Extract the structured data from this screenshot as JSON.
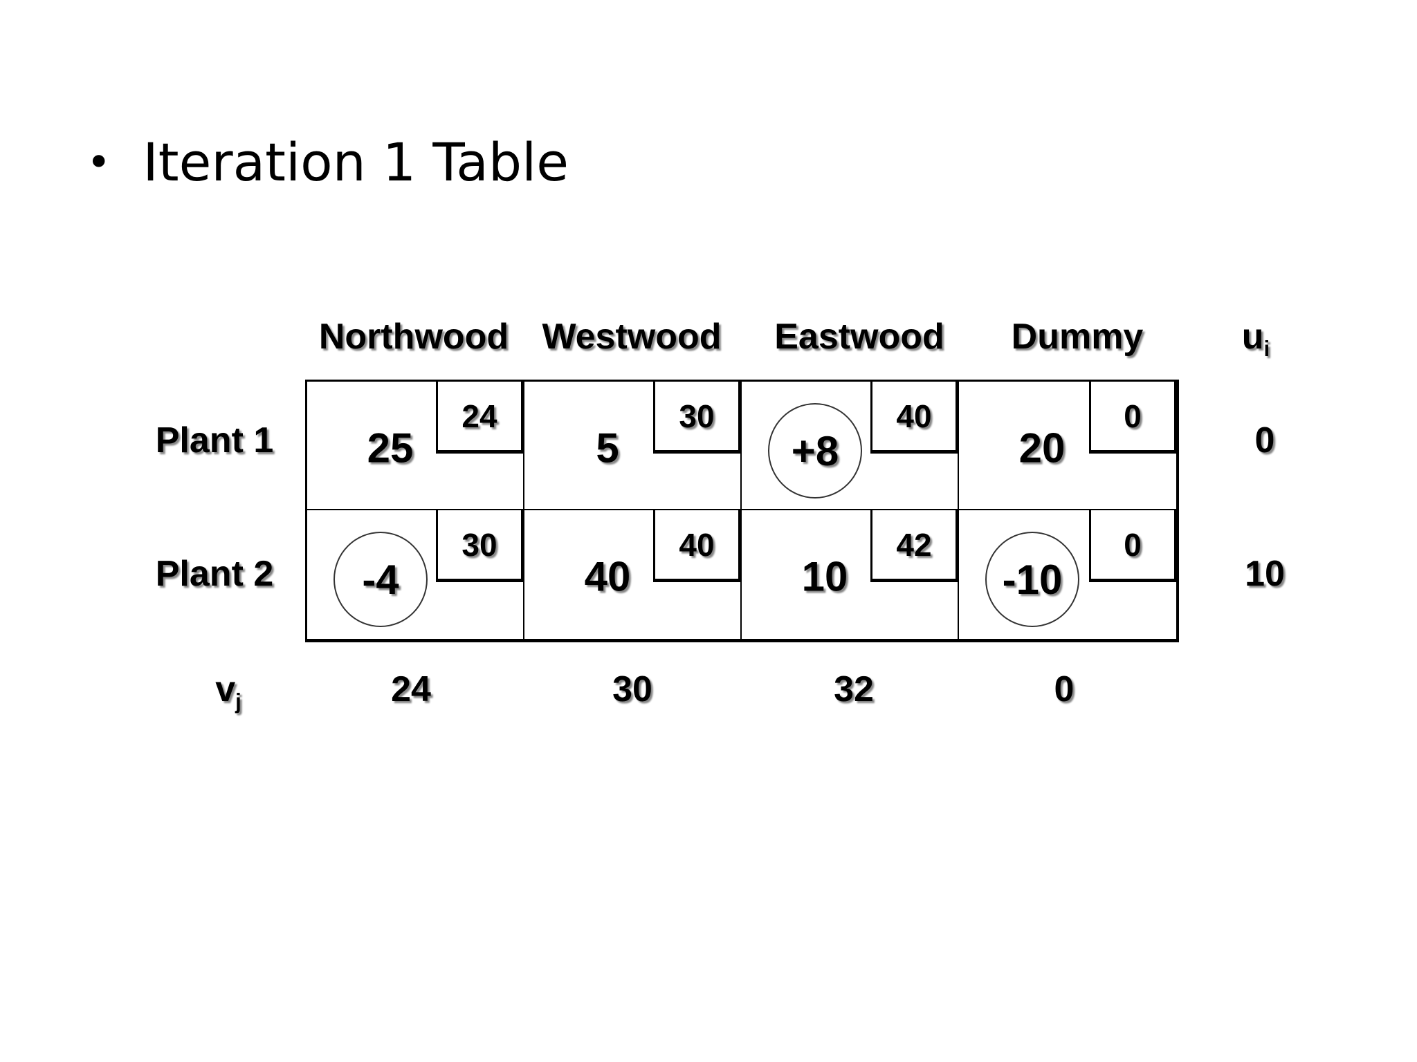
{
  "title": "Iteration 1 Table",
  "columns": [
    "Northwood",
    "Westwood",
    "Eastwood",
    "Dummy"
  ],
  "ui_label": {
    "base": "u",
    "sub": "i"
  },
  "vj_label": {
    "base": "v",
    "sub": "j"
  },
  "rows": [
    {
      "label": "Plant 1",
      "ui": "0",
      "cells": [
        {
          "value": "25",
          "cost": "24",
          "circled": false
        },
        {
          "value": "5",
          "cost": "30",
          "circled": false
        },
        {
          "value": "+8",
          "cost": "40",
          "circled": true
        },
        {
          "value": "20",
          "cost": "0",
          "circled": false
        }
      ]
    },
    {
      "label": "Plant 2",
      "ui": "10",
      "cells": [
        {
          "value": "-4",
          "cost": "30",
          "circled": true
        },
        {
          "value": "40",
          "cost": "40",
          "circled": false
        },
        {
          "value": "10",
          "cost": "42",
          "circled": false
        },
        {
          "value": "-10",
          "cost": "0",
          "circled": true
        }
      ]
    }
  ],
  "vj": [
    "24",
    "30",
    "32",
    "0"
  ]
}
